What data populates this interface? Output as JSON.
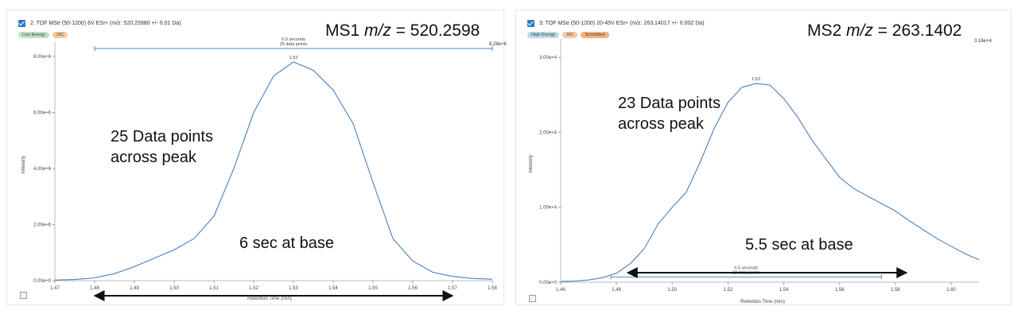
{
  "panels": [
    {
      "header": "2: TOF MSe (50-1200) 6V ESI+ (m/z: 520.25980 +/- 0.01 Da)",
      "badges": [
        {
          "label": "Low Energy",
          "color": "#bfe3c9"
        },
        {
          "label": "XIC",
          "color": "#f6c9a2"
        }
      ],
      "mz_prefix": "MS1 ",
      "mz_italic": "m/z",
      "mz_value": " = 520.2598",
      "ymax_label": "8.28e+6",
      "annot_points": [
        "25 Data points",
        "across peak"
      ],
      "annot_base": "6 sec at base",
      "peak_label": "1.53",
      "range_label_1": "6.0 seconds",
      "range_label_2": "25 data points"
    },
    {
      "header": "3: TOF MSe (50-1200) 20-45V ESI+ (m/z: 263.14017 +/- 0.002 Da)",
      "badges": [
        {
          "label": "High Energy",
          "color": "#b8dbe8"
        },
        {
          "label": "XIC",
          "color": "#f6c9a2"
        },
        {
          "label": "Smoothed",
          "color": "#f3b27a"
        }
      ],
      "mz_prefix": "MS2 ",
      "mz_italic": "m/z",
      "mz_value": " = 263.1402",
      "ymax_label": "3.16e+4",
      "annot_points": [
        "23 Data points",
        "across peak"
      ],
      "annot_base": "5.5 sec at base",
      "peak_label": "1.53",
      "range_label_1": "5.5 seconds",
      "range_label_2": "23 data points"
    }
  ],
  "chart_data": [
    {
      "type": "line",
      "xlabel": "Retention Time (min)",
      "ylabel": "Intensity",
      "xlim": [
        1.47,
        1.58
      ],
      "ylim": [
        0,
        8280000
      ],
      "xticks": [
        1.47,
        1.48,
        1.49,
        1.5,
        1.51,
        1.52,
        1.53,
        1.54,
        1.55,
        1.56,
        1.57,
        1.58
      ],
      "yticks": [
        0,
        2000000,
        4000000,
        6000000,
        8000000
      ],
      "yticklabels": [
        "0.00e+0",
        "2.00e+6",
        "4.00e+6",
        "6.00e+6",
        "8.00e+6"
      ],
      "series": [
        {
          "x": [
            1.47,
            1.475,
            1.48,
            1.485,
            1.49,
            1.495,
            1.5,
            1.505,
            1.51,
            1.515,
            1.52,
            1.525,
            1.53,
            1.535,
            1.54,
            1.545,
            1.55,
            1.555,
            1.56,
            1.565,
            1.57,
            1.575,
            1.58
          ],
          "y": [
            20000,
            40000,
            100000,
            250000,
            500000,
            800000,
            1100000,
            1500000,
            2300000,
            4000000,
            6000000,
            7300000,
            7800000,
            7500000,
            6800000,
            5600000,
            3500000,
            1500000,
            700000,
            300000,
            150000,
            80000,
            50000
          ]
        }
      ],
      "annotations": {
        "peak_x": 1.53,
        "peak_y": 7800000,
        "peak_label": "1.53",
        "range": [
          1.48,
          1.58
        ],
        "range_y": 8280000,
        "range_text": [
          "6.0 seconds",
          "25 data points"
        ],
        "base_arrow": [
          1.48,
          1.57
        ]
      }
    },
    {
      "type": "line",
      "xlabel": "Retention Time (min)",
      "ylabel": "Intensity",
      "xlim": [
        1.46,
        1.61
      ],
      "ylim": [
        0,
        31600
      ],
      "xticks": [
        1.46,
        1.48,
        1.5,
        1.52,
        1.54,
        1.56,
        1.58,
        1.6
      ],
      "yticks": [
        0,
        10000,
        20000,
        30000
      ],
      "yticklabels": [
        "0.00e+0",
        "1.00e+4",
        "2.00e+4",
        "3.00e+4"
      ],
      "series": [
        {
          "x": [
            1.46,
            1.465,
            1.47,
            1.475,
            1.48,
            1.485,
            1.49,
            1.495,
            1.5,
            1.505,
            1.51,
            1.515,
            1.52,
            1.525,
            1.53,
            1.535,
            1.54,
            1.545,
            1.55,
            1.555,
            1.56,
            1.565,
            1.57,
            1.575,
            1.58,
            1.585,
            1.59,
            1.595,
            1.6,
            1.605,
            1.61
          ],
          "y": [
            100,
            150,
            300,
            600,
            1200,
            2500,
            4500,
            7800,
            10000,
            12000,
            16000,
            20500,
            24000,
            26000,
            26500,
            26300,
            24500,
            22000,
            19000,
            16500,
            14000,
            12500,
            11500,
            10500,
            9500,
            8200,
            7000,
            5800,
            4800,
            3800,
            3000
          ]
        }
      ],
      "annotations": {
        "peak_x": 1.53,
        "peak_y": 26500,
        "peak_label": "1.53",
        "range": [
          1.478,
          1.575
        ],
        "range_y": 700,
        "range_text": [
          "5.5 seconds",
          "23 data points"
        ],
        "base_arrow": [
          1.484,
          1.584
        ]
      }
    }
  ]
}
